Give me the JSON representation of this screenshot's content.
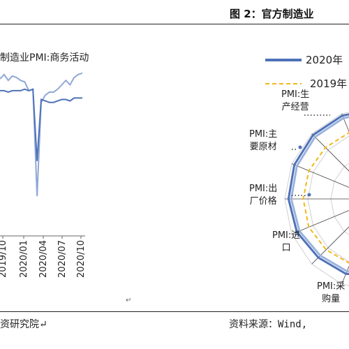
{
  "figure": {
    "title": "图 2：官方制造业",
    "paragraph_mark": "↵"
  },
  "left_chart": {
    "title": "制造业PMI:商务活动",
    "source": "资研究院↵"
  },
  "right_chart": {
    "source": "资料来源：Wind,",
    "legend": [
      "2020年",
      "2019年"
    ],
    "axes": [
      {
        "line1": "PMI:生",
        "line2": "产经营"
      },
      {
        "line1": "PMI:主",
        "line2": "要原材"
      },
      {
        "line1": "PMI:出",
        "line2": "厂价格"
      },
      {
        "line1": "PMI:进",
        "line2": "口"
      },
      {
        "line1": "PMI:采",
        "line2": "购量"
      }
    ]
  },
  "chart_data": {
    "type": "line",
    "x_ticks": [
      "2019/10",
      "2020/01",
      "2020/04",
      "2020/07",
      "2020/10"
    ],
    "series": [
      {
        "color": "#8fa8d6",
        "values": [
          0.89,
          0.92,
          0.88,
          0.91,
          0.9,
          0.88,
          0.87,
          0.81,
          0.82,
          0.09,
          0.73,
          0.78,
          0.8,
          0.8,
          0.82,
          0.85,
          0.88,
          0.85,
          0.9,
          0.92,
          0.93
        ]
      },
      {
        "color": "#4f72b8",
        "values": [
          0.81,
          0.81,
          0.8,
          0.81,
          0.81,
          0.81,
          0.82,
          0.81,
          0.82,
          0.33,
          0.75,
          0.74,
          0.73,
          0.73,
          0.74,
          0.75,
          0.75,
          0.74,
          0.76,
          0.76,
          0.76
        ]
      }
    ],
    "colors": {
      "series_2020": "#4f72b8",
      "series_2019": "#f2b81b"
    }
  }
}
